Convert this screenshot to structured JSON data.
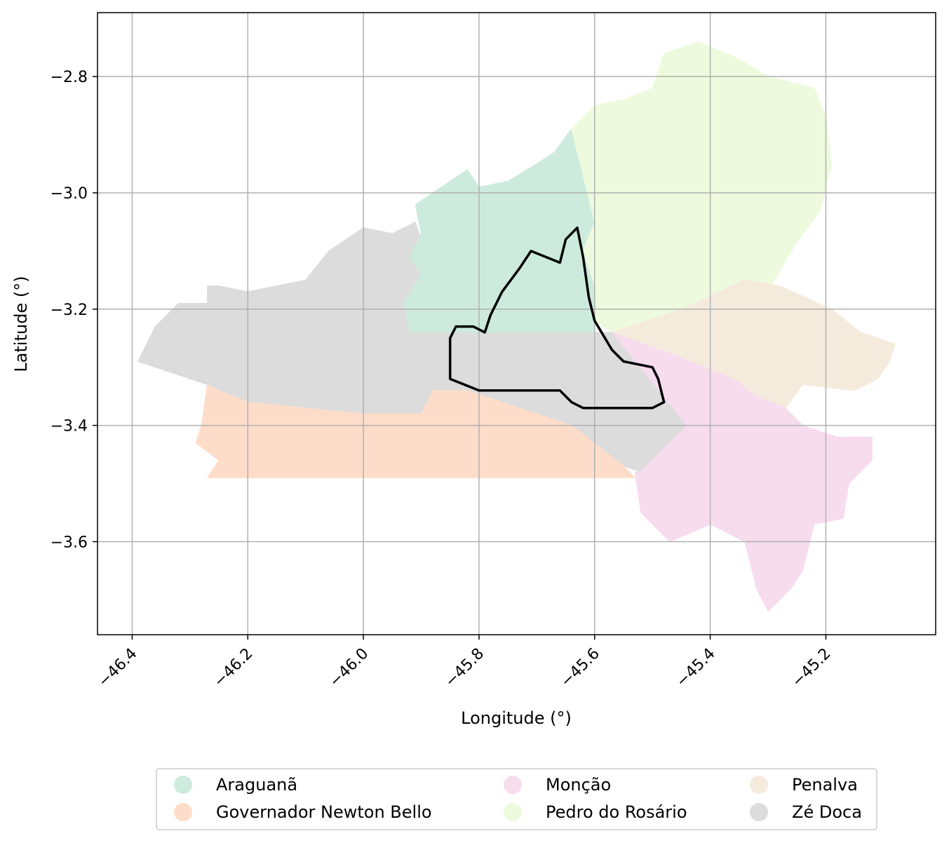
{
  "chart_data": {
    "type": "choropleth-map",
    "xlabel": "Longitude (°)",
    "ylabel": "Latitude (°)",
    "xlim": [
      -46.46,
      -45.01
    ],
    "ylim": [
      -3.76,
      -2.69
    ],
    "grid": true,
    "x_ticks": [
      {
        "value": -46.4,
        "label": "−46.4"
      },
      {
        "value": -46.2,
        "label": "−46.2"
      },
      {
        "value": -46.0,
        "label": "−46.0"
      },
      {
        "value": -45.8,
        "label": "−45.8"
      },
      {
        "value": -45.6,
        "label": "−45.6"
      },
      {
        "value": -45.4,
        "label": "−45.4"
      },
      {
        "value": -45.2,
        "label": "−45.2"
      }
    ],
    "y_ticks": [
      {
        "value": -2.8,
        "label": "−2.8"
      },
      {
        "value": -3.0,
        "label": "−3.0"
      },
      {
        "value": -3.2,
        "label": "−3.2"
      },
      {
        "value": -3.4,
        "label": "−3.4"
      },
      {
        "value": -3.6,
        "label": "−3.6"
      }
    ],
    "regions": [
      {
        "name": "Zé Doca",
        "color": "#dcdcdc",
        "coords": [
          [
            -46.39,
            -3.29
          ],
          [
            -46.36,
            -3.23
          ],
          [
            -46.32,
            -3.19
          ],
          [
            -46.27,
            -3.19
          ],
          [
            -46.27,
            -3.16
          ],
          [
            -46.25,
            -3.16
          ],
          [
            -46.2,
            -3.17
          ],
          [
            -46.15,
            -3.16
          ],
          [
            -46.1,
            -3.15
          ],
          [
            -46.06,
            -3.1
          ],
          [
            -46.0,
            -3.06
          ],
          [
            -45.95,
            -3.07
          ],
          [
            -45.91,
            -3.05
          ],
          [
            -45.9,
            -3.08
          ],
          [
            -45.92,
            -3.11
          ],
          [
            -45.9,
            -3.14
          ],
          [
            -45.93,
            -3.19
          ],
          [
            -45.92,
            -3.23
          ],
          [
            -45.84,
            -3.24
          ],
          [
            -45.78,
            -3.24
          ],
          [
            -45.57,
            -3.24
          ],
          [
            -45.44,
            -3.4
          ],
          [
            -45.52,
            -3.48
          ],
          [
            -45.55,
            -3.47
          ],
          [
            -45.64,
            -3.4
          ],
          [
            -45.82,
            -3.34
          ],
          [
            -45.88,
            -3.34
          ],
          [
            -45.9,
            -3.38
          ],
          [
            -46.0,
            -3.38
          ],
          [
            -46.1,
            -3.37
          ],
          [
            -46.2,
            -3.36
          ],
          [
            -46.27,
            -3.33
          ],
          [
            -46.39,
            -3.29
          ]
        ]
      },
      {
        "name": "Araguanã",
        "color": "#cdebdd",
        "coords": [
          [
            -45.92,
            -3.24
          ],
          [
            -45.93,
            -3.19
          ],
          [
            -45.9,
            -3.14
          ],
          [
            -45.92,
            -3.11
          ],
          [
            -45.9,
            -3.07
          ],
          [
            -45.91,
            -3.02
          ],
          [
            -45.85,
            -2.98
          ],
          [
            -45.82,
            -2.96
          ],
          [
            -45.8,
            -2.99
          ],
          [
            -45.75,
            -2.98
          ],
          [
            -45.7,
            -2.95
          ],
          [
            -45.67,
            -2.93
          ],
          [
            -45.64,
            -2.89
          ],
          [
            -45.6,
            -3.05
          ],
          [
            -45.62,
            -3.1
          ],
          [
            -45.6,
            -3.16
          ],
          [
            -45.6,
            -3.24
          ],
          [
            -45.78,
            -3.24
          ],
          [
            -45.92,
            -3.24
          ]
        ]
      },
      {
        "name": "Pedro do Rosário",
        "color": "#eefadd",
        "coords": [
          [
            -45.64,
            -2.89
          ],
          [
            -45.6,
            -2.85
          ],
          [
            -45.55,
            -2.84
          ],
          [
            -45.5,
            -2.82
          ],
          [
            -45.48,
            -2.76
          ],
          [
            -45.42,
            -2.74
          ],
          [
            -45.35,
            -2.77
          ],
          [
            -45.3,
            -2.8
          ],
          [
            -45.22,
            -2.82
          ],
          [
            -45.2,
            -2.87
          ],
          [
            -45.19,
            -2.95
          ],
          [
            -45.21,
            -3.03
          ],
          [
            -45.26,
            -3.1
          ],
          [
            -45.3,
            -3.17
          ],
          [
            -45.45,
            -3.2
          ],
          [
            -45.57,
            -3.24
          ],
          [
            -45.6,
            -3.22
          ],
          [
            -45.6,
            -3.16
          ],
          [
            -45.62,
            -3.1
          ],
          [
            -45.6,
            -3.05
          ],
          [
            -45.64,
            -2.89
          ]
        ]
      },
      {
        "name": "Penalva",
        "color": "#f5ebdd",
        "coords": [
          [
            -45.57,
            -3.24
          ],
          [
            -45.45,
            -3.2
          ],
          [
            -45.34,
            -3.15
          ],
          [
            -45.28,
            -3.16
          ],
          [
            -45.19,
            -3.2
          ],
          [
            -45.14,
            -3.24
          ],
          [
            -45.08,
            -3.26
          ],
          [
            -45.09,
            -3.29
          ],
          [
            -45.11,
            -3.32
          ],
          [
            -45.15,
            -3.34
          ],
          [
            -45.24,
            -3.33
          ],
          [
            -45.27,
            -3.37
          ],
          [
            -45.32,
            -3.35
          ],
          [
            -45.36,
            -3.32
          ],
          [
            -45.46,
            -3.28
          ],
          [
            -45.57,
            -3.24
          ]
        ]
      },
      {
        "name": "Monção",
        "color": "#f7dcee",
        "coords": [
          [
            -45.57,
            -3.24
          ],
          [
            -45.46,
            -3.28
          ],
          [
            -45.36,
            -3.32
          ],
          [
            -45.32,
            -3.35
          ],
          [
            -45.27,
            -3.37
          ],
          [
            -45.24,
            -3.4
          ],
          [
            -45.18,
            -3.42
          ],
          [
            -45.12,
            -3.42
          ],
          [
            -45.12,
            -3.46
          ],
          [
            -45.16,
            -3.5
          ],
          [
            -45.17,
            -3.56
          ],
          [
            -45.22,
            -3.57
          ],
          [
            -45.24,
            -3.65
          ],
          [
            -45.26,
            -3.68
          ],
          [
            -45.3,
            -3.72
          ],
          [
            -45.32,
            -3.68
          ],
          [
            -45.34,
            -3.6
          ],
          [
            -45.4,
            -3.57
          ],
          [
            -45.47,
            -3.6
          ],
          [
            -45.52,
            -3.55
          ],
          [
            -45.53,
            -3.48
          ],
          [
            -45.52,
            -3.48
          ],
          [
            -45.44,
            -3.4
          ],
          [
            -45.57,
            -3.24
          ]
        ]
      },
      {
        "name": "Governador Newton Bello",
        "color": "#fdddc9",
        "coords": [
          [
            -46.27,
            -3.33
          ],
          [
            -46.25,
            -3.34
          ],
          [
            -46.2,
            -3.36
          ],
          [
            -46.1,
            -3.37
          ],
          [
            -46.0,
            -3.38
          ],
          [
            -45.9,
            -3.38
          ],
          [
            -45.88,
            -3.34
          ],
          [
            -45.82,
            -3.34
          ],
          [
            -45.64,
            -3.4
          ],
          [
            -45.55,
            -3.47
          ],
          [
            -45.53,
            -3.49
          ],
          [
            -45.7,
            -3.49
          ],
          [
            -46.0,
            -3.49
          ],
          [
            -46.27,
            -3.49
          ],
          [
            -46.25,
            -3.46
          ],
          [
            -46.29,
            -3.43
          ],
          [
            -46.28,
            -3.4
          ],
          [
            -46.27,
            -3.33
          ]
        ]
      }
    ],
    "highlight_boundary": [
      [
        -45.85,
        -3.32
      ],
      [
        -45.85,
        -3.25
      ],
      [
        -45.84,
        -3.23
      ],
      [
        -45.81,
        -3.23
      ],
      [
        -45.79,
        -3.24
      ],
      [
        -45.78,
        -3.21
      ],
      [
        -45.76,
        -3.17
      ],
      [
        -45.73,
        -3.13
      ],
      [
        -45.71,
        -3.1
      ],
      [
        -45.66,
        -3.12
      ],
      [
        -45.65,
        -3.08
      ],
      [
        -45.63,
        -3.06
      ],
      [
        -45.62,
        -3.11
      ],
      [
        -45.61,
        -3.18
      ],
      [
        -45.6,
        -3.22
      ],
      [
        -45.57,
        -3.27
      ],
      [
        -45.55,
        -3.29
      ],
      [
        -45.5,
        -3.3
      ],
      [
        -45.49,
        -3.32
      ],
      [
        -45.48,
        -3.36
      ],
      [
        -45.5,
        -3.37
      ],
      [
        -45.56,
        -3.37
      ],
      [
        -45.62,
        -3.37
      ],
      [
        -45.64,
        -3.36
      ],
      [
        -45.66,
        -3.34
      ],
      [
        -45.8,
        -3.34
      ],
      [
        -45.85,
        -3.32
      ]
    ],
    "legend": {
      "placement": "bottom-center",
      "columns": 3,
      "entries": [
        {
          "label": "Araguanã",
          "color": "#cdebdd"
        },
        {
          "label": "Governador Newton Bello",
          "color": "#fdddc9"
        },
        {
          "label": "Monção",
          "color": "#f7dcee"
        },
        {
          "label": "Pedro do Rosário",
          "color": "#eefadd"
        },
        {
          "label": "Penalva",
          "color": "#f5ebdd"
        },
        {
          "label": "Zé Doca",
          "color": "#dcdcdc"
        }
      ]
    }
  }
}
